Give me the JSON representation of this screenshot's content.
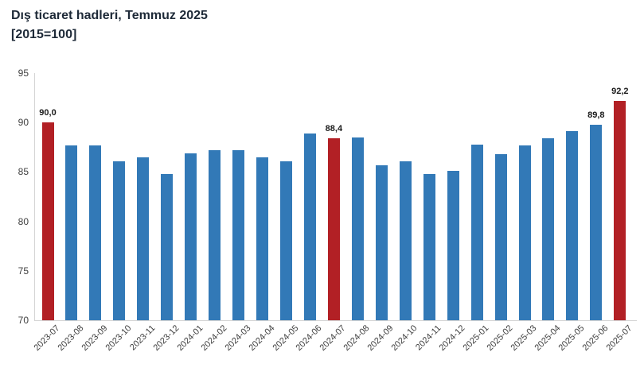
{
  "title": {
    "line1": "Dış ticaret hadleri, Temmuz 2025",
    "line2": "[2015=100]"
  },
  "chart_data": {
    "type": "bar",
    "title": "Dış ticaret hadleri, Temmuz 2025 [2015=100]",
    "categories": [
      "2023-07",
      "2023-08",
      "2023-09",
      "2023-10",
      "2023-11",
      "2023-12",
      "2024-01",
      "2024-02",
      "2024-03",
      "2024-04",
      "2024-05",
      "2024-06",
      "2024-07",
      "2024-08",
      "2024-09",
      "2024-10",
      "2024-11",
      "2024-12",
      "2025-01",
      "2025-02",
      "2025-03",
      "2025-04",
      "2025-05",
      "2025-06",
      "2025-07"
    ],
    "values": [
      90.0,
      87.7,
      87.7,
      86.1,
      86.5,
      84.8,
      86.9,
      87.2,
      87.2,
      86.5,
      86.1,
      88.9,
      88.4,
      88.5,
      85.7,
      86.1,
      84.8,
      85.1,
      87.8,
      86.8,
      87.7,
      88.4,
      89.1,
      89.8,
      92.2
    ],
    "highlighted_categories": [
      "2023-07",
      "2024-07",
      "2025-07"
    ],
    "data_labels": {
      "2023-07": "90,0",
      "2024-07": "88,4",
      "2025-06": "89,8",
      "2025-07": "92,2"
    },
    "xlabel": "",
    "ylabel": "",
    "ylim": [
      70,
      95
    ],
    "yticks": [
      "70",
      "75",
      "80",
      "85",
      "90",
      "95"
    ],
    "grid": false,
    "legend": false,
    "colors": {
      "bar": "#3279b7",
      "highlight": "#b22025",
      "axis_line": "#d4d4d4",
      "tick_text": "#404040",
      "data_label_text": "#1a1a1a",
      "title_text": "#1e2a38"
    }
  }
}
